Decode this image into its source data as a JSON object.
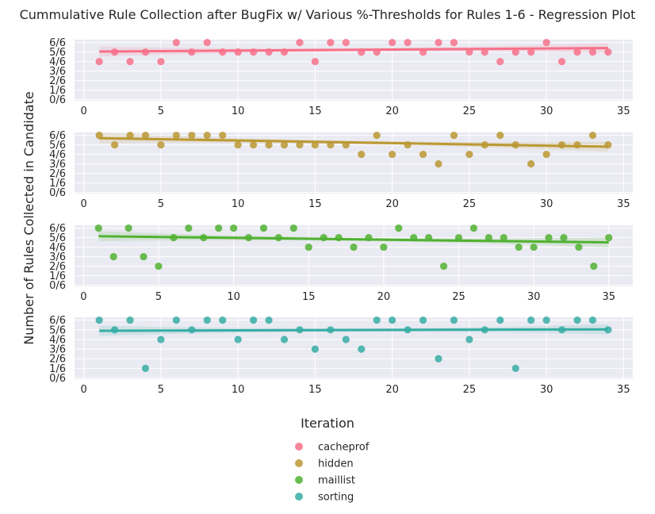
{
  "chart_data": {
    "type": "scatter",
    "title": "Cummulative Rule Collection after BugFix w/ Various %-Thresholds for Rules 1-6 - Regression Plot",
    "xlabel": "Iteration",
    "ylabel": "Number of Rules Collected in Candidate",
    "yticks": [
      "0/6",
      "1/6",
      "2/6",
      "3/6",
      "4/6",
      "5/6",
      "6/6"
    ],
    "grid": true,
    "legend_position": "bottom-center",
    "panels": [
      {
        "name": "cacheprof",
        "color": "#f77189",
        "xlim": [
          -0.6,
          35.6
        ],
        "xticks": [
          0,
          5,
          10,
          15,
          20,
          25,
          30,
          35
        ],
        "x": [
          1,
          2,
          3,
          4,
          5,
          6,
          7,
          8,
          9,
          10,
          11,
          12,
          13,
          14,
          15,
          16,
          17,
          18,
          19,
          20,
          21,
          22,
          23,
          24,
          25,
          26,
          27,
          28,
          29,
          30,
          31,
          32,
          33,
          34
        ],
        "y": [
          4,
          5,
          4,
          5,
          4,
          6,
          5,
          6,
          5,
          5,
          5,
          5,
          5,
          6,
          4,
          6,
          6,
          5,
          5,
          6,
          6,
          5,
          6,
          6,
          5,
          5,
          4,
          5,
          5,
          6,
          4,
          5,
          5,
          5
        ],
        "fit": [
          5.05,
          5.42
        ]
      },
      {
        "name": "hidden",
        "color": "#bb9832",
        "xlim": [
          -0.6,
          35.6
        ],
        "xticks": [
          0,
          5,
          10,
          15,
          20,
          25,
          30,
          35
        ],
        "x": [
          1,
          2,
          3,
          4,
          5,
          6,
          7,
          8,
          9,
          10,
          11,
          12,
          13,
          14,
          15,
          16,
          17,
          18,
          19,
          20,
          21,
          22,
          23,
          24,
          25,
          26,
          27,
          28,
          29,
          30,
          31,
          32,
          33,
          34
        ],
        "y": [
          6,
          5,
          6,
          6,
          5,
          6,
          6,
          6,
          6,
          5,
          5,
          5,
          5,
          5,
          5,
          5,
          5,
          4,
          6,
          4,
          5,
          4,
          3,
          6,
          4,
          5,
          6,
          5,
          3,
          4,
          5,
          5,
          6,
          5
        ],
        "fit": [
          5.7,
          4.8
        ]
      },
      {
        "name": "maillist",
        "color": "#50b131",
        "xlim": [
          -0.6,
          36.6
        ],
        "xticks": [
          0,
          5,
          10,
          15,
          20,
          25,
          30,
          35
        ],
        "x": [
          1,
          2,
          3,
          4,
          5,
          6,
          7,
          8,
          9,
          10,
          11,
          12,
          13,
          14,
          15,
          16,
          17,
          18,
          19,
          20,
          21,
          22,
          23,
          24,
          25,
          26,
          27,
          28,
          29,
          30,
          31,
          32,
          33,
          34,
          35
        ],
        "y": [
          6,
          3,
          6,
          3,
          2,
          5,
          6,
          5,
          6,
          6,
          5,
          6,
          5,
          6,
          4,
          5,
          5,
          4,
          5,
          4,
          6,
          5,
          5,
          2,
          5,
          6,
          5,
          5,
          4,
          4,
          5,
          5,
          4,
          2,
          5
        ],
        "fit": [
          5.15,
          4.5
        ]
      },
      {
        "name": "sorting",
        "color": "#3ba3ec",
        "color_override": "#36ada4",
        "xlim": [
          -0.6,
          35.6
        ],
        "xticks": [
          0,
          5,
          10,
          15,
          20,
          25,
          30,
          35
        ],
        "x": [
          1,
          2,
          3,
          4,
          5,
          6,
          7,
          8,
          9,
          10,
          11,
          12,
          13,
          14,
          15,
          16,
          17,
          18,
          19,
          20,
          21,
          22,
          23,
          24,
          25,
          26,
          27,
          28,
          29,
          30,
          31,
          32,
          33,
          34
        ],
        "y": [
          6,
          5,
          6,
          1,
          4,
          6,
          5,
          6,
          6,
          4,
          6,
          6,
          4,
          5,
          3,
          5,
          4,
          3,
          6,
          6,
          5,
          6,
          2,
          6,
          4,
          5,
          6,
          1,
          6,
          6,
          5,
          6,
          6,
          5
        ],
        "fit": [
          4.9,
          5.05
        ]
      }
    ]
  }
}
